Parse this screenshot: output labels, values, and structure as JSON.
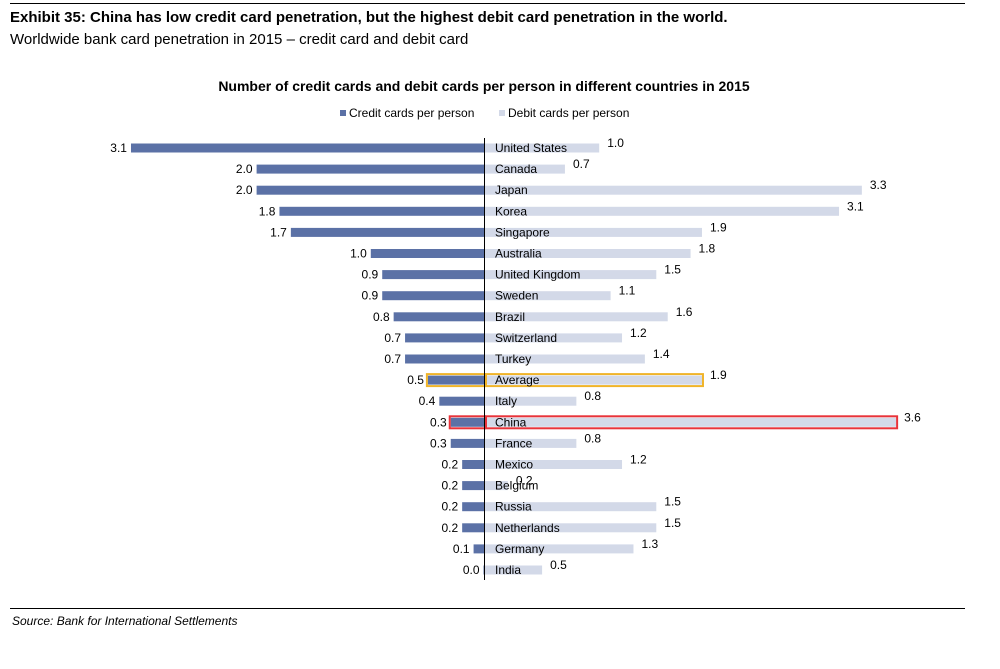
{
  "header": {
    "title": "Exhibit 35: China has low credit card penetration, but the highest debit card penetration in the world.",
    "subtitle": "Worldwide bank card penetration in 2015 – credit card and debit card"
  },
  "source": "Source: Bank for International Settlements",
  "chart_data": {
    "type": "bar",
    "orientation": "horizontal-butterfly",
    "title": "Number of credit cards and debit cards per person in different countries in 2015",
    "legend_position": "top",
    "grid": false,
    "categories": [
      "United States",
      "Canada",
      "Japan",
      "Korea",
      "Singapore",
      "Australia",
      "United Kingdom",
      "Sweden",
      "Brazil",
      "Switzerland",
      "Turkey",
      "Average",
      "Italy",
      "China",
      "France",
      "Mexico",
      "Belgium",
      "Russia",
      "Netherlands",
      "Germany",
      "India"
    ],
    "series": [
      {
        "name": "Credit cards per person",
        "side": "left",
        "color": "#5b71a6",
        "values": [
          3.1,
          2.0,
          2.0,
          1.8,
          1.7,
          1.0,
          0.9,
          0.9,
          0.8,
          0.7,
          0.7,
          0.5,
          0.4,
          0.3,
          0.3,
          0.2,
          0.2,
          0.2,
          0.2,
          0.1,
          0.0
        ],
        "labels": [
          "3.1",
          "2.0",
          "2.0",
          "1.8",
          "1.7",
          "1.0",
          "0.9",
          "0.9",
          "0.8",
          "0.7",
          "0.7",
          "0.5",
          "0.4",
          "0.3",
          "0.3",
          "0.2",
          "0.2",
          "0.2",
          "0.2",
          "0.1",
          "0.0"
        ]
      },
      {
        "name": "Debit cards per person",
        "side": "right",
        "color": "#d3d9e8",
        "values": [
          1.0,
          0.7,
          3.3,
          3.1,
          1.9,
          1.8,
          1.5,
          1.1,
          1.6,
          1.2,
          1.4,
          1.9,
          0.8,
          3.6,
          0.8,
          1.2,
          0.2,
          1.5,
          1.5,
          1.3,
          0.5
        ],
        "labels": [
          "1.0",
          "0.7",
          "3.3",
          "3.1",
          "1.9",
          "1.8",
          "1.5",
          "1.1",
          "1.6",
          "1.2",
          "1.4",
          "1.9",
          "0.8",
          "3.6",
          "0.8",
          "1.2",
          "0.2",
          "1.5",
          "1.5",
          "1.3",
          "0.5"
        ]
      }
    ],
    "highlights": [
      {
        "category": "Average",
        "color": "#f0b429"
      },
      {
        "category": "China",
        "color": "#e8333a"
      }
    ],
    "xlim": [
      0,
      3.6
    ]
  }
}
